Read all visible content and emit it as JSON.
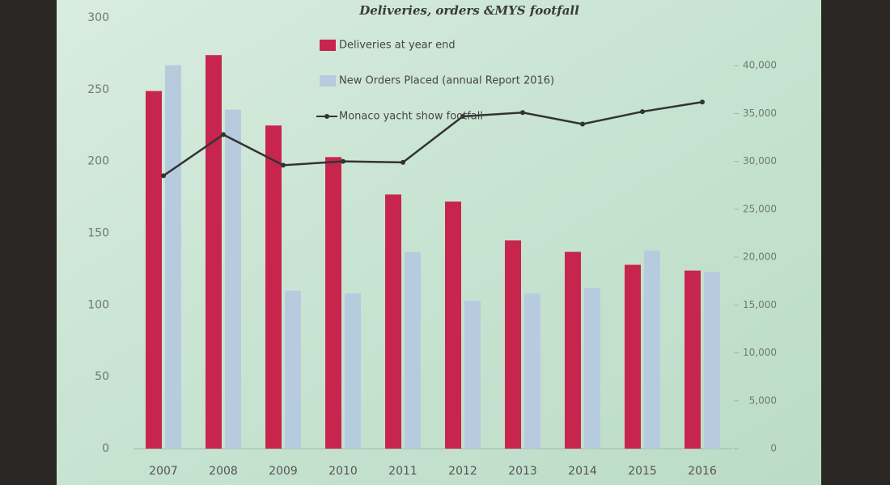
{
  "chart_data": {
    "type": "bar",
    "title": "Deliveries, orders &MYS footfall",
    "categories": [
      "2007",
      "2008",
      "2009",
      "2010",
      "2011",
      "2012",
      "2013",
      "2014",
      "2015",
      "2016"
    ],
    "series": [
      {
        "name": "Deliveries at year end",
        "type": "bar",
        "color": "#c8254e",
        "values": [
          249,
          274,
          225,
          203,
          177,
          172,
          145,
          137,
          128,
          124
        ]
      },
      {
        "name": "New Orders Placed (annual Report 2016)",
        "type": "bar",
        "color": "#b7cbdf",
        "values": [
          267,
          236,
          110,
          108,
          137,
          103,
          108,
          112,
          138,
          123
        ]
      },
      {
        "name": "Monaco yacht show footfall",
        "type": "line",
        "axis": "y2",
        "color": "#333333",
        "values": [
          28500,
          32800,
          29600,
          30000,
          29900,
          34700,
          35100,
          33900,
          35200,
          36200
        ]
      }
    ],
    "ylim": [
      0,
      300
    ],
    "yticks": [
      0,
      50,
      100,
      150,
      200,
      250,
      300
    ],
    "y2lim": [
      0,
      45000
    ],
    "y2ticks": [
      0,
      {
        "value": 5000,
        "label": "5,000"
      },
      {
        "value": 10000,
        "label": "10,000"
      },
      {
        "value": 15000,
        "label": "15,000"
      },
      {
        "value": 20000,
        "label": "20,000"
      },
      {
        "value": 25000,
        "label": "25,000"
      },
      {
        "value": 30000,
        "label": "30,000"
      },
      {
        "value": 35000,
        "label": "35,000"
      },
      {
        "value": 40000,
        "label": "40,000"
      }
    ],
    "legend": "top"
  }
}
